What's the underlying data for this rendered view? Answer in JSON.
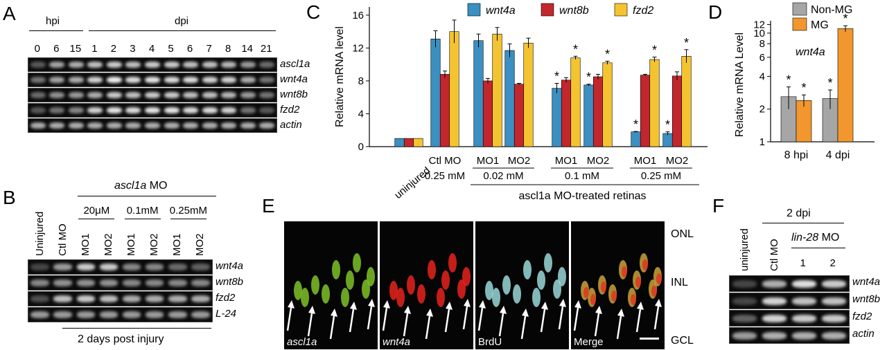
{
  "panels": {
    "A": {
      "label": "A",
      "hpi_label": "hpi",
      "dpi_label": "dpi",
      "timepoints": [
        "0",
        "6",
        "15",
        "1",
        "2",
        "3",
        "4",
        "5",
        "6",
        "7",
        "8",
        "14",
        "21"
      ],
      "genes": [
        "ascl1a",
        "wnt4a",
        "wnt8b",
        "fzd2",
        "actin"
      ]
    },
    "B": {
      "label": "B",
      "mo_title": "ascl1a",
      "mo_suffix": " MO",
      "lanes": [
        "Uninjured",
        "Ctl MO",
        "MO1",
        "MO2",
        "MO1",
        "MO2",
        "MO1",
        "MO2"
      ],
      "concentrations": [
        "20μM",
        "0.1mM",
        "0.25mM"
      ],
      "genes": [
        "wnt4a",
        "wnt8b",
        "fzd2",
        "L-24"
      ],
      "footer": "2 days post injury"
    },
    "C": {
      "label": "C",
      "legend": [
        "wnt4a",
        "wnt8b",
        "fzd2"
      ],
      "x_groups": [
        "uninjured",
        "Ctl MO",
        "MO1",
        "MO2",
        "MO1",
        "MO2",
        "MO1",
        "MO2"
      ],
      "sub_labels": [
        "0.25 mM",
        "0.02 mM",
        "0.1 mM",
        "0.25 mM"
      ],
      "footer": "ascl1a MO-treated retinas"
    },
    "D": {
      "label": "D",
      "legend": [
        "Non-MG",
        "MG"
      ],
      "gene": "wnt4a",
      "x_groups": [
        "8 hpi",
        "4 dpi"
      ]
    },
    "E": {
      "label": "E",
      "channels": [
        "ascl1a",
        "wnt4a",
        "BrdU",
        "Merge"
      ],
      "layers": [
        "ONL",
        "INL",
        "GCL"
      ]
    },
    "F": {
      "label": "F",
      "lanes": [
        "uninjured",
        "Ctl MO",
        "1",
        "2"
      ],
      "timepoint": "2 dpi",
      "mo_title": "lin-28",
      "mo_suffix": " MO",
      "genes": [
        "wnt4a",
        "wnt8b",
        "fzd2",
        "actin"
      ]
    }
  },
  "chart_data": [
    {
      "panel": "C",
      "type": "bar",
      "categories": [
        "uninjured",
        "Ctl MO 0.25 mM",
        "MO1 0.02 mM",
        "MO2 0.02 mM",
        "MO1 0.1 mM",
        "MO2 0.1 mM",
        "MO1 0.25 mM",
        "MO2 0.25 mM"
      ],
      "series": [
        {
          "name": "wnt4a",
          "color": "#3b8fc1",
          "values": [
            1,
            13.1,
            12.9,
            11.7,
            7.1,
            7.5,
            1.8,
            1.6
          ],
          "errors": [
            0,
            1.0,
            0.8,
            0.8,
            0.6,
            0.1,
            0.05,
            0.2
          ],
          "significant": [
            false,
            false,
            false,
            false,
            true,
            true,
            true,
            true
          ]
        },
        {
          "name": "wnt8b",
          "color": "#c1272d",
          "values": [
            1,
            8.8,
            8.0,
            7.6,
            8.1,
            8.5,
            8.7,
            8.6
          ],
          "errors": [
            0,
            0.4,
            0.3,
            0.1,
            0.3,
            0.3,
            0.1,
            0.5
          ],
          "significant": [
            false,
            false,
            false,
            false,
            false,
            false,
            false,
            false
          ]
        },
        {
          "name": "fzd2",
          "color": "#f4c430",
          "values": [
            1,
            14.0,
            13.7,
            12.6,
            10.8,
            10.2,
            10.6,
            11.0
          ],
          "errors": [
            0,
            1.4,
            0.8,
            0.6,
            0.2,
            0.2,
            0.3,
            0.8
          ],
          "significant": [
            false,
            false,
            false,
            false,
            true,
            true,
            true,
            true
          ]
        }
      ],
      "ylabel": "Relative mRNA level",
      "ylim": [
        0,
        17
      ],
      "yticks": [
        0,
        4,
        8,
        12,
        16
      ]
    },
    {
      "panel": "D",
      "type": "bar",
      "categories": [
        "8 hpi",
        "4 dpi"
      ],
      "series": [
        {
          "name": "Non-MG",
          "color": "#a6a6a6",
          "values": [
            2.6,
            2.5
          ],
          "errors": [
            0.6,
            0.5
          ],
          "significant": [
            true,
            true
          ]
        },
        {
          "name": "MG",
          "color": "#f2972e",
          "values": [
            2.4,
            11.0
          ],
          "errors": [
            0.3,
            0.7
          ],
          "significant": [
            true,
            true
          ]
        }
      ],
      "ylabel": "Relative mRNA Level",
      "yscale": "log",
      "ylim": [
        1,
        13
      ],
      "yticks": [
        1,
        2,
        4,
        6,
        8,
        10,
        12
      ],
      "annotation": "wnt4a"
    }
  ]
}
